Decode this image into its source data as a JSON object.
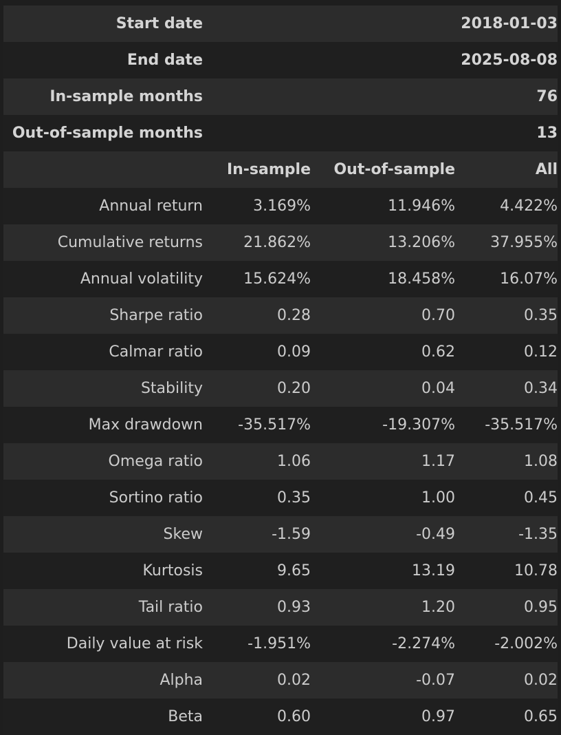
{
  "meta": [
    {
      "label": "Start date",
      "value": "2018-01-03"
    },
    {
      "label": "End date",
      "value": "2025-08-08"
    },
    {
      "label": "In-sample months",
      "value": "76"
    },
    {
      "label": "Out-of-sample months",
      "value": "13"
    }
  ],
  "columns": [
    "In-sample",
    "Out-of-sample",
    "All"
  ],
  "rows": [
    {
      "label": "Annual return",
      "values": [
        "3.169%",
        "11.946%",
        "4.422%"
      ]
    },
    {
      "label": "Cumulative returns",
      "values": [
        "21.862%",
        "13.206%",
        "37.955%"
      ]
    },
    {
      "label": "Annual volatility",
      "values": [
        "15.624%",
        "18.458%",
        "16.07%"
      ]
    },
    {
      "label": "Sharpe ratio",
      "values": [
        "0.28",
        "0.70",
        "0.35"
      ]
    },
    {
      "label": "Calmar ratio",
      "values": [
        "0.09",
        "0.62",
        "0.12"
      ]
    },
    {
      "label": "Stability",
      "values": [
        "0.20",
        "0.04",
        "0.34"
      ]
    },
    {
      "label": "Max drawdown",
      "values": [
        "-35.517%",
        "-19.307%",
        "-35.517%"
      ]
    },
    {
      "label": "Omega ratio",
      "values": [
        "1.06",
        "1.17",
        "1.08"
      ]
    },
    {
      "label": "Sortino ratio",
      "values": [
        "0.35",
        "1.00",
        "0.45"
      ]
    },
    {
      "label": "Skew",
      "values": [
        "-1.59",
        "-0.49",
        "-1.35"
      ]
    },
    {
      "label": "Kurtosis",
      "values": [
        "9.65",
        "13.19",
        "10.78"
      ]
    },
    {
      "label": "Tail ratio",
      "values": [
        "0.93",
        "1.20",
        "0.95"
      ]
    },
    {
      "label": "Daily value at risk",
      "values": [
        "-1.951%",
        "-2.274%",
        "-2.002%"
      ]
    },
    {
      "label": "Alpha",
      "values": [
        "0.02",
        "-0.07",
        "0.02"
      ]
    },
    {
      "label": "Beta",
      "values": [
        "0.60",
        "0.97",
        "0.65"
      ]
    }
  ]
}
